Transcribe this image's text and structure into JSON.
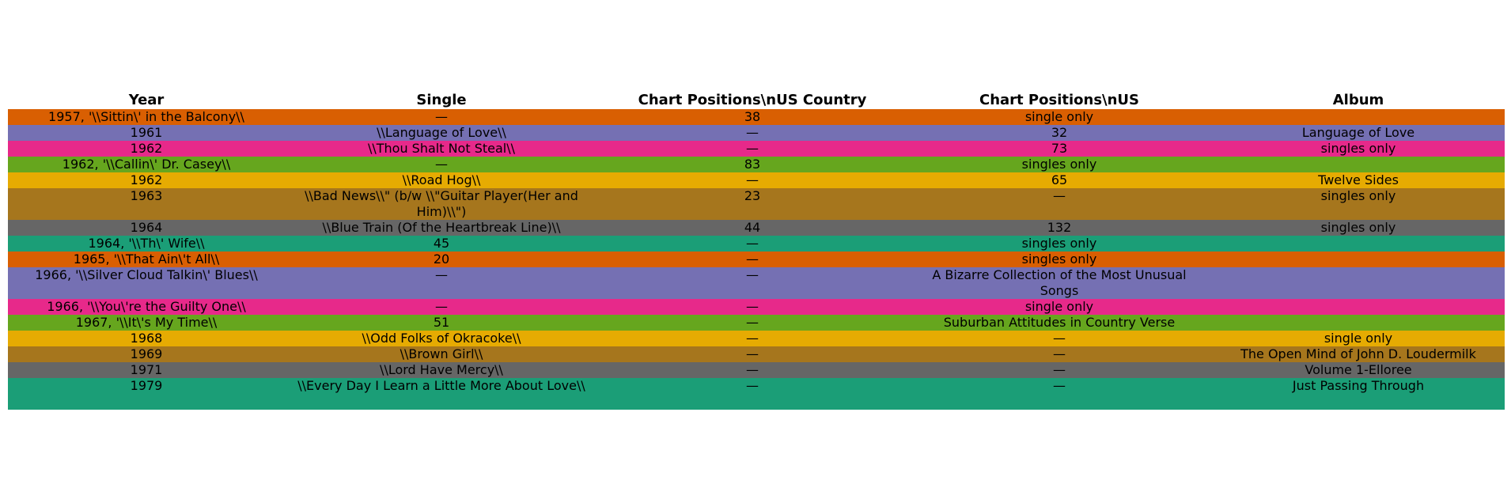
{
  "chart_data": {
    "type": "table",
    "columns": [
      "Year",
      "Single",
      "Chart Positions\\nUS Country",
      "Chart Positions\\nUS",
      "Album"
    ],
    "rows": [
      {
        "color": "#d95f02",
        "cells": [
          "1957, '\\\\Sittin\\' in the Balcony\\\\",
          "—",
          "38",
          "single only",
          ""
        ]
      },
      {
        "color": "#7570b3",
        "cells": [
          "1961",
          "\\\\Language of Love\\\\",
          "—",
          "32",
          "Language of Love"
        ]
      },
      {
        "color": "#e7298a",
        "cells": [
          "1962",
          "\\\\Thou Shalt Not Steal\\\\",
          "—",
          "73",
          "singles only"
        ]
      },
      {
        "color": "#66a61e",
        "cells": [
          "1962, '\\\\Callin\\' Dr. Casey\\\\",
          "—",
          "83",
          "singles only",
          ""
        ]
      },
      {
        "color": "#e6ab02",
        "cells": [
          "1962",
          "\\\\Road Hog\\\\",
          "—",
          "65",
          "Twelve Sides"
        ]
      },
      {
        "color": "#a6761d",
        "cells": [
          "1963",
          "\\\\Bad News\\\\\" (b/w \\\\\"Guitar Player(Her and Him)\\\\\")",
          "23",
          "—",
          "singles only"
        ]
      },
      {
        "color": "#666666",
        "cells": [
          "1964",
          "\\\\Blue Train (Of the Heartbreak Line)\\\\",
          "44",
          "132",
          "singles only"
        ]
      },
      {
        "color": "#1b9e77",
        "cells": [
          "1964, '\\\\Th\\' Wife\\\\",
          "45",
          "—",
          "singles only",
          ""
        ]
      },
      {
        "color": "#d95f02",
        "cells": [
          "1965, '\\\\That Ain\\'t All\\\\",
          "20",
          "—",
          "singles only",
          ""
        ]
      },
      {
        "color": "#7570b3",
        "cells": [
          "1966, '\\\\Silver Cloud Talkin\\' Blues\\\\",
          "—",
          "—",
          "A Bizarre Collection of the Most Unusual Songs",
          ""
        ]
      },
      {
        "color": "#e7298a",
        "cells": [
          "1966, '\\\\You\\'re the Guilty One\\\\",
          "—",
          "—",
          "single only",
          ""
        ]
      },
      {
        "color": "#66a61e",
        "cells": [
          "1967, '\\\\It\\'s My Time\\\\",
          "51",
          "—",
          "Suburban Attitudes in Country Verse",
          ""
        ]
      },
      {
        "color": "#e6ab02",
        "cells": [
          "1968",
          "\\\\Odd Folks of Okracoke\\\\",
          "—",
          "—",
          "single only"
        ]
      },
      {
        "color": "#a6761d",
        "cells": [
          "1969",
          "\\\\Brown Girl\\\\",
          "—",
          "—",
          "The Open Mind of John D. Loudermilk"
        ]
      },
      {
        "color": "#666666",
        "cells": [
          "1971",
          "\\\\Lord Have Mercy\\\\",
          "—",
          "—",
          "Volume 1-Elloree"
        ]
      },
      {
        "color": "#1b9e77",
        "cells": [
          "1979",
          "\\\\Every Day I Learn a Little More About Love\\\\",
          "—",
          "—",
          "Just Passing Through"
        ]
      }
    ]
  }
}
